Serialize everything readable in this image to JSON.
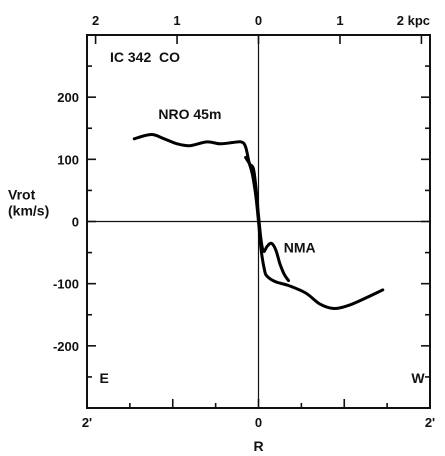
{
  "chart_data": {
    "type": "line",
    "title": "IC 342  CO",
    "xlabel": "R",
    "ylabel": [
      "Vrot",
      "(km/s)"
    ],
    "xlim": [
      -2,
      2
    ],
    "ylim": [
      -300,
      300
    ],
    "x_units": "arcmin",
    "x_tick_labels": [
      "2'",
      "0",
      "2'"
    ],
    "x_tick_values": [
      -2,
      0,
      2
    ],
    "top_axis": {
      "tick_labels": [
        "2",
        "1",
        "0",
        "1",
        "2 kpc"
      ],
      "tick_values": [
        -1.9,
        -0.95,
        0,
        0.95,
        1.9
      ]
    },
    "y_tick_values": [
      200,
      100,
      0,
      -100,
      -200
    ],
    "y_tick_labels": [
      "200",
      "100",
      "0",
      "-100",
      "-200"
    ],
    "grid": false,
    "annotations": [
      {
        "text": "NRO 45m",
        "x": -0.8,
        "y": 165
      },
      {
        "text": "NMA",
        "x": 0.48,
        "y": -50
      },
      {
        "text": "E",
        "x": -1.8,
        "y": -260
      },
      {
        "text": "W",
        "x": 1.86,
        "y": -260
      }
    ],
    "series": [
      {
        "name": "NRO 45m",
        "x": [
          -1.45,
          -1.25,
          -1.1,
          -0.95,
          -0.8,
          -0.6,
          -0.45,
          -0.3,
          -0.2,
          -0.15,
          -0.11,
          -0.07,
          -0.03,
          0,
          0.03,
          0.07,
          0.1,
          0.2,
          0.35,
          0.55,
          0.72,
          0.88,
          1.05,
          1.25,
          1.45
        ],
        "y": [
          133,
          140,
          133,
          125,
          122,
          128,
          125,
          127,
          128,
          120,
          95,
          75,
          40,
          0,
          -45,
          -78,
          -88,
          -97,
          -103,
          -115,
          -133,
          -140,
          -135,
          -123,
          -110
        ]
      },
      {
        "name": "NMA",
        "x": [
          -0.15,
          -0.1,
          -0.06,
          -0.03,
          0,
          0.03,
          0.06,
          0.1,
          0.15,
          0.2,
          0.25,
          0.3,
          0.35
        ],
        "y": [
          103,
          92,
          85,
          55,
          10,
          -30,
          -48,
          -40,
          -35,
          -45,
          -68,
          -85,
          -95
        ]
      }
    ]
  }
}
